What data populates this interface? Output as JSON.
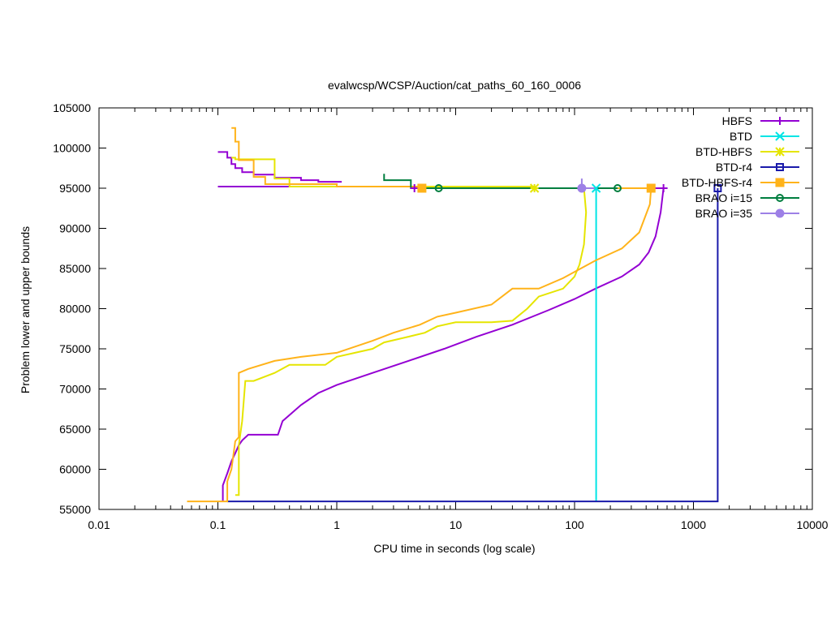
{
  "chart_data": {
    "type": "line",
    "title": "evalwcsp/WCSP/Auction/cat_paths_60_160_0006",
    "xlabel": "CPU time in seconds (log scale)",
    "ylabel": "Problem lower and upper bounds",
    "xscale": "log",
    "xlim": [
      0.01,
      10000
    ],
    "ylim": [
      55000,
      105000
    ],
    "xticks": [
      0.01,
      0.1,
      1,
      10,
      100,
      1000,
      10000
    ],
    "xtick_labels": [
      "0.01",
      "0.1",
      "1",
      "10",
      "100",
      "1000",
      "10000"
    ],
    "yticks": [
      55000,
      60000,
      65000,
      70000,
      75000,
      80000,
      85000,
      90000,
      95000,
      100000,
      105000
    ],
    "ytick_labels": [
      "55000",
      "60000",
      "65000",
      "70000",
      "75000",
      "80000",
      "85000",
      "90000",
      "95000",
      "100000",
      "105000"
    ],
    "grid": false,
    "legend_position": "top-right",
    "series": [
      {
        "name": "HBFS",
        "color": "#9400d3",
        "marker": "plus",
        "marker_points": [
          [
            4.5,
            95000
          ],
          [
            560,
            95000
          ]
        ],
        "lines": [
          [
            [
              0.1,
              99500
            ],
            [
              0.12,
              99500
            ],
            [
              0.12,
              98800
            ],
            [
              0.13,
              98800
            ],
            [
              0.13,
              98000
            ],
            [
              0.14,
              98000
            ],
            [
              0.14,
              97500
            ],
            [
              0.16,
              97500
            ],
            [
              0.16,
              97000
            ],
            [
              0.2,
              97000
            ],
            [
              0.2,
              96700
            ],
            [
              0.3,
              96700
            ],
            [
              0.3,
              96300
            ],
            [
              0.5,
              96300
            ],
            [
              0.5,
              96000
            ],
            [
              0.7,
              96000
            ],
            [
              0.7,
              95800
            ],
            [
              1.1,
              95800
            ]
          ],
          [
            [
              0.1,
              95200
            ],
            [
              4.5,
              95200
            ],
            [
              4.5,
              95000
            ],
            [
              560,
              95000
            ]
          ],
          [
            [
              0.11,
              56000
            ],
            [
              0.11,
              58000
            ],
            [
              0.12,
              59500
            ],
            [
              0.13,
              61000
            ],
            [
              0.14,
              62000
            ],
            [
              0.15,
              63000
            ],
            [
              0.16,
              63600
            ],
            [
              0.18,
              64300
            ],
            [
              0.32,
              64300
            ],
            [
              0.35,
              66000
            ],
            [
              0.5,
              68000
            ],
            [
              0.7,
              69500
            ],
            [
              1.0,
              70500
            ],
            [
              2.0,
              72000
            ],
            [
              4.0,
              73500
            ],
            [
              8.0,
              75000
            ],
            [
              15,
              76500
            ],
            [
              30,
              78000
            ],
            [
              60,
              79800
            ],
            [
              100,
              81200
            ],
            [
              150,
              82500
            ],
            [
              250,
              84000
            ],
            [
              350,
              85500
            ],
            [
              420,
              87000
            ],
            [
              480,
              89000
            ],
            [
              530,
              92000
            ],
            [
              560,
              95000
            ]
          ]
        ]
      },
      {
        "name": "BTD",
        "color": "#00e5e5",
        "marker": "cross",
        "marker_points": [
          [
            152,
            95000
          ]
        ],
        "lines": [
          [
            [
              152,
              56000
            ],
            [
              152,
              95000
            ]
          ]
        ]
      },
      {
        "name": "BTD-HBFS",
        "color": "#e5e500",
        "marker": "star",
        "marker_points": [
          [
            46,
            95000
          ]
        ],
        "lines": [
          [
            [
              0.13,
              98800
            ],
            [
              0.14,
              98800
            ],
            [
              0.14,
              98600
            ],
            [
              0.3,
              98600
            ],
            [
              0.3,
              96200
            ],
            [
              0.4,
              96200
            ],
            [
              0.4,
              95200
            ],
            [
              46,
              95200
            ],
            [
              46,
              95000
            ],
            [
              120,
              95000
            ]
          ],
          [
            [
              0.14,
              56800
            ],
            [
              0.15,
              56800
            ],
            [
              0.15,
              63000
            ],
            [
              0.16,
              66000
            ],
            [
              0.17,
              71000
            ],
            [
              0.2,
              71000
            ],
            [
              0.3,
              72000
            ],
            [
              0.4,
              73000
            ],
            [
              0.8,
              73000
            ],
            [
              1.0,
              74000
            ],
            [
              2.0,
              75000
            ],
            [
              2.5,
              75800
            ],
            [
              4.0,
              76500
            ],
            [
              5.5,
              77000
            ],
            [
              7.0,
              77800
            ],
            [
              10,
              78300
            ],
            [
              20,
              78300
            ],
            [
              30,
              78500
            ],
            [
              40,
              80000
            ],
            [
              50,
              81500
            ],
            [
              80,
              82500
            ],
            [
              100,
              84000
            ],
            [
              110,
              85500
            ],
            [
              120,
              88000
            ],
            [
              125,
              92000
            ],
            [
              120,
              95000
            ]
          ]
        ]
      },
      {
        "name": "BTD-r4",
        "color": "#1a1aaa",
        "marker": "open-square",
        "marker_points": [
          [
            1600,
            95000
          ]
        ],
        "lines": [
          [
            [
              0.12,
              56000
            ],
            [
              1600,
              56000
            ],
            [
              1600,
              95000
            ]
          ]
        ]
      },
      {
        "name": "BTD-HBFS-r4",
        "color": "#ffb31a",
        "marker": "filled-square",
        "marker_points": [
          [
            5.2,
            95000
          ],
          [
            440,
            95000
          ]
        ],
        "lines": [
          [
            [
              0.13,
              102500
            ],
            [
              0.14,
              102500
            ],
            [
              0.14,
              100800
            ],
            [
              0.15,
              100800
            ],
            [
              0.15,
              98500
            ],
            [
              0.2,
              98500
            ],
            [
              0.2,
              96400
            ],
            [
              0.25,
              96400
            ],
            [
              0.25,
              95500
            ],
            [
              1.0,
              95500
            ],
            [
              1.0,
              95200
            ],
            [
              5.2,
              95200
            ],
            [
              5.2,
              95000
            ],
            [
              440,
              95000
            ]
          ],
          [
            [
              0.055,
              56000
            ],
            [
              0.12,
              56000
            ],
            [
              0.12,
              58500
            ],
            [
              0.13,
              60000
            ],
            [
              0.14,
              63500
            ],
            [
              0.15,
              64000
            ],
            [
              0.15,
              72000
            ],
            [
              0.18,
              72500
            ],
            [
              0.3,
              73500
            ],
            [
              0.5,
              74000
            ],
            [
              1.0,
              74500
            ],
            [
              2.0,
              76000
            ],
            [
              3.0,
              77000
            ],
            [
              5.0,
              78000
            ],
            [
              7.0,
              79000
            ],
            [
              10,
              79500
            ],
            [
              20,
              80500
            ],
            [
              30,
              82500
            ],
            [
              50,
              82500
            ],
            [
              80,
              83800
            ],
            [
              150,
              86000
            ],
            [
              250,
              87500
            ],
            [
              350,
              89500
            ],
            [
              430,
              93000
            ],
            [
              440,
              95000
            ]
          ]
        ]
      },
      {
        "name": "BRAO i=15",
        "color": "#007e3f",
        "marker": "open-circle",
        "marker_points": [
          [
            7.2,
            95000
          ],
          [
            230,
            95000
          ]
        ],
        "lines": [
          [
            [
              2.5,
              96800
            ],
            [
              2.5,
              96000
            ],
            [
              4.2,
              96000
            ],
            [
              4.2,
              95000
            ],
            [
              230,
              95000
            ]
          ]
        ]
      },
      {
        "name": "BRAO i=35",
        "color": "#9d80e6",
        "marker": "filled-circle",
        "marker_points": [
          [
            115,
            95000
          ]
        ],
        "lines": [
          [
            [
              115,
              96200
            ],
            [
              115,
              95000
            ],
            [
              152,
              95000
            ]
          ]
        ]
      }
    ]
  }
}
